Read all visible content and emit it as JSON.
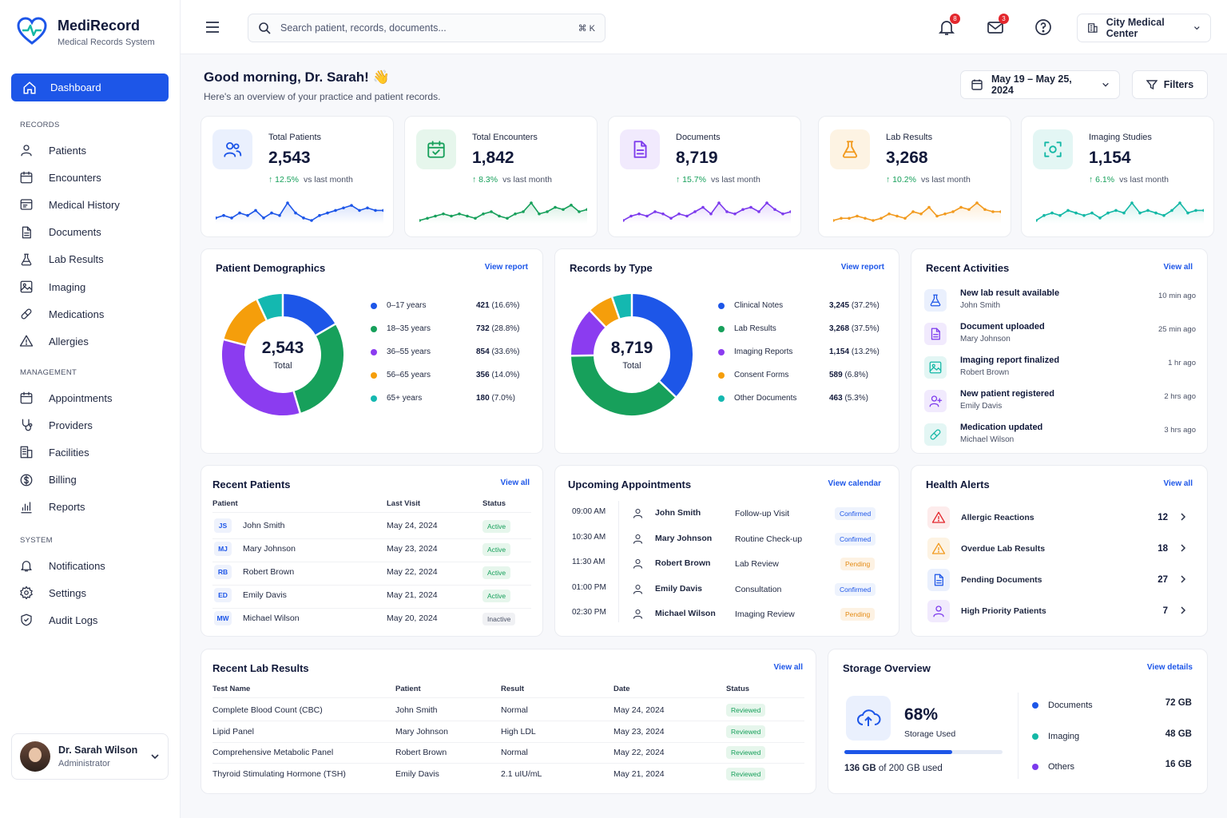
{
  "app": {
    "title": "MediRecord",
    "subtitle": "Medical Records System"
  },
  "nav": {
    "dashboard": "Dashboard",
    "records_section": "RECORDS",
    "records": [
      "Patients",
      "Encounters",
      "Medical History",
      "Documents",
      "Lab Results",
      "Imaging",
      "Medications",
      "Allergies"
    ],
    "management_section": "MANAGEMENT",
    "management": [
      "Appointments",
      "Providers",
      "Facilities",
      "Billing",
      "Reports"
    ],
    "system_section": "SYSTEM",
    "system": [
      "Notifications",
      "Settings",
      "Audit Logs"
    ]
  },
  "user": {
    "name": "Dr. Sarah Wilson",
    "role": "Administrator"
  },
  "header": {
    "search_placeholder": "Search patient, records, documents...",
    "shortcut": "⌘ K",
    "notifications_count": "8",
    "messages_count": "3",
    "facility": "City Medical Center"
  },
  "greeting": {
    "title": "Good morning, Dr. Sarah! 👋",
    "subtitle": "Here's an overview of your practice and patient records."
  },
  "date_range": "May 19 – May 25, 2024",
  "filters_label": "Filters",
  "stats": [
    {
      "label": "Total Patients",
      "value": "2,543",
      "change": "↑ 12.5%",
      "vs": "vs last month",
      "color": "#1d56e8",
      "bg": "#eaf0fd",
      "icon": "users-icon",
      "trend": [
        6,
        7,
        6,
        8,
        7,
        9,
        6,
        8,
        7,
        12,
        8,
        6,
        5,
        7,
        8,
        9,
        10,
        11,
        9,
        10,
        9,
        9
      ]
    },
    {
      "label": "Total Encounters",
      "value": "1,842",
      "change": "↑ 8.3%",
      "vs": "vs last month",
      "color": "#17a05b",
      "bg": "#e6f6ec",
      "icon": "calendar-check-icon",
      "trend": [
        5,
        6,
        7,
        8,
        7,
        8,
        7,
        6,
        8,
        9,
        7,
        6,
        8,
        9,
        13,
        8,
        9,
        11,
        10,
        12,
        9,
        10
      ]
    },
    {
      "label": "Documents",
      "value": "8,719",
      "change": "↑ 15.7%",
      "vs": "vs last month",
      "color": "#7c3aed",
      "bg": "#f1eafd",
      "icon": "document-icon",
      "trend": [
        5,
        7,
        8,
        7,
        9,
        8,
        6,
        8,
        7,
        9,
        11,
        8,
        13,
        9,
        8,
        10,
        11,
        9,
        13,
        10,
        8,
        9
      ]
    },
    {
      "label": "Lab Results",
      "value": "3,268",
      "change": "↑ 10.2%",
      "vs": "vs last month",
      "color": "#f29a1e",
      "bg": "#fdf3e3",
      "icon": "flask-icon",
      "trend": [
        6,
        7,
        7,
        8,
        7,
        6,
        7,
        9,
        8,
        7,
        10,
        9,
        12,
        8,
        9,
        10,
        12,
        11,
        14,
        11,
        10,
        10
      ]
    },
    {
      "label": "Imaging Studies",
      "value": "1,154",
      "change": "↑ 6.1%",
      "vs": "vs last month",
      "color": "#14b8a6",
      "bg": "#e3f6f4",
      "icon": "scan-icon",
      "trend": [
        6,
        8,
        9,
        8,
        10,
        9,
        8,
        9,
        7,
        9,
        10,
        9,
        13,
        9,
        10,
        9,
        8,
        10,
        13,
        9,
        10,
        10
      ]
    }
  ],
  "demographics": {
    "title": "Patient Demographics",
    "link": "View report",
    "center_value": "2,543",
    "center_label": "Total",
    "items": [
      {
        "label": "0–17 years",
        "count": "421",
        "pct": "(16.6%)",
        "value": 16.6,
        "color": "#1d56e8"
      },
      {
        "label": "18–35 years",
        "count": "732",
        "pct": "(28.8%)",
        "value": 28.8,
        "color": "#17a05b"
      },
      {
        "label": "36–55 years",
        "count": "854",
        "pct": "(33.6%)",
        "value": 33.6,
        "color": "#8b3cf0"
      },
      {
        "label": "56–65 years",
        "count": "356",
        "pct": "(14.0%)",
        "value": 14.0,
        "color": "#f59e0b"
      },
      {
        "label": "65+ years",
        "count": "180",
        "pct": "(7.0%)",
        "value": 7.0,
        "color": "#14b8b0"
      }
    ]
  },
  "records_by_type": {
    "title": "Records by Type",
    "link": "View report",
    "center_value": "8,719",
    "center_label": "Total",
    "items": [
      {
        "label": "Clinical Notes",
        "count": "3,245",
        "pct": "(37.2%)",
        "value": 37.2,
        "color": "#1d56e8"
      },
      {
        "label": "Lab Results",
        "count": "3,268",
        "pct": "(37.5%)",
        "value": 37.5,
        "color": "#17a05b"
      },
      {
        "label": "Imaging Reports",
        "count": "1,154",
        "pct": "(13.2%)",
        "value": 13.2,
        "color": "#8b3cf0"
      },
      {
        "label": "Consent Forms",
        "count": "589",
        "pct": "(6.8%)",
        "value": 6.8,
        "color": "#f59e0b"
      },
      {
        "label": "Other Documents",
        "count": "463",
        "pct": "(5.3%)",
        "value": 5.3,
        "color": "#14b8b0"
      }
    ]
  },
  "activities": {
    "title": "Recent Activities",
    "link": "View all",
    "items": [
      {
        "title": "New lab result available",
        "sub": "John Smith",
        "time": "10 min ago",
        "color": "#1d56e8",
        "bg": "#eaf0fd",
        "icon": "flask-icon"
      },
      {
        "title": "Document uploaded",
        "sub": "Mary Johnson",
        "time": "25 min ago",
        "color": "#7c3aed",
        "bg": "#f1eafd",
        "icon": "document-icon"
      },
      {
        "title": "Imaging report finalized",
        "sub": "Robert Brown",
        "time": "1 hr ago",
        "color": "#14b8a6",
        "bg": "#e3f6f4",
        "icon": "image-icon"
      },
      {
        "title": "New patient registered",
        "sub": "Emily Davis",
        "time": "2 hrs ago",
        "color": "#7c3aed",
        "bg": "#f1eafd",
        "icon": "user-plus-icon"
      },
      {
        "title": "Medication updated",
        "sub": "Michael Wilson",
        "time": "3 hrs ago",
        "color": "#14b8a6",
        "bg": "#e3f6f4",
        "icon": "pill-icon"
      }
    ]
  },
  "recent_patients": {
    "title": "Recent Patients",
    "link": "View all",
    "headers": [
      "Patient",
      "Last Visit",
      "Status"
    ],
    "rows": [
      {
        "initials": "JS",
        "name": "John Smith",
        "date": "May 24, 2024",
        "status": "Active"
      },
      {
        "initials": "MJ",
        "name": "Mary Johnson",
        "date": "May 23, 2024",
        "status": "Active"
      },
      {
        "initials": "RB",
        "name": "Robert Brown",
        "date": "May 22, 2024",
        "status": "Active"
      },
      {
        "initials": "ED",
        "name": "Emily Davis",
        "date": "May 21, 2024",
        "status": "Active"
      },
      {
        "initials": "MW",
        "name": "Michael Wilson",
        "date": "May 20, 2024",
        "status": "Inactive"
      }
    ]
  },
  "appointments": {
    "title": "Upcoming Appointments",
    "link": "View calendar",
    "rows": [
      {
        "time": "09:00 AM",
        "name": "John Smith",
        "type": "Follow-up Visit",
        "status": "Confirmed"
      },
      {
        "time": "10:30 AM",
        "name": "Mary Johnson",
        "type": "Routine Check-up",
        "status": "Confirmed"
      },
      {
        "time": "11:30 AM",
        "name": "Robert Brown",
        "type": "Lab Review",
        "status": "Pending"
      },
      {
        "time": "01:00 PM",
        "name": "Emily Davis",
        "type": "Consultation",
        "status": "Confirmed"
      },
      {
        "time": "02:30 PM",
        "name": "Michael Wilson",
        "type": "Imaging Review",
        "status": "Pending"
      }
    ]
  },
  "health_alerts": {
    "title": "Health Alerts",
    "link": "View all",
    "items": [
      {
        "label": "Allergic Reactions",
        "count": "12",
        "color": "#e3262c",
        "bg": "#fdecec",
        "icon": "warning-icon"
      },
      {
        "label": "Overdue Lab Results",
        "count": "18",
        "color": "#f29a1e",
        "bg": "#fdf3e3",
        "icon": "warning-icon"
      },
      {
        "label": "Pending Documents",
        "count": "27",
        "color": "#1d56e8",
        "bg": "#eaf0fd",
        "icon": "document-icon"
      },
      {
        "label": "High Priority Patients",
        "count": "7",
        "color": "#7c3aed",
        "bg": "#f1eafd",
        "icon": "user-icon"
      }
    ]
  },
  "lab_results": {
    "title": "Recent Lab Results",
    "link": "View all",
    "headers": [
      "Test Name",
      "Patient",
      "Result",
      "Date",
      "Status"
    ],
    "rows": [
      {
        "test": "Complete Blood Count (CBC)",
        "patient": "John Smith",
        "result": "Normal",
        "date": "May 24, 2024",
        "status": "Reviewed"
      },
      {
        "test": "Lipid Panel",
        "patient": "Mary Johnson",
        "result": "High LDL",
        "date": "May 23, 2024",
        "status": "Reviewed"
      },
      {
        "test": "Comprehensive Metabolic Panel",
        "patient": "Robert Brown",
        "result": "Normal",
        "date": "May 22, 2024",
        "status": "Reviewed"
      },
      {
        "test": "Thyroid Stimulating Hormone (TSH)",
        "patient": "Emily Davis",
        "result": "2.1 uIU/mL",
        "date": "May 21, 2024",
        "status": "Reviewed"
      }
    ]
  },
  "storage": {
    "title": "Storage Overview",
    "link": "View details",
    "percent": "68%",
    "percent_value": 68,
    "label": "Storage Used",
    "used": "136 GB",
    "total_text": "of 200 GB used",
    "items": [
      {
        "label": "Documents",
        "size": "72 GB",
        "color": "#1d56e8"
      },
      {
        "label": "Imaging",
        "size": "48 GB",
        "color": "#14b8a6"
      },
      {
        "label": "Others",
        "size": "16 GB",
        "color": "#7c3aed"
      }
    ]
  }
}
